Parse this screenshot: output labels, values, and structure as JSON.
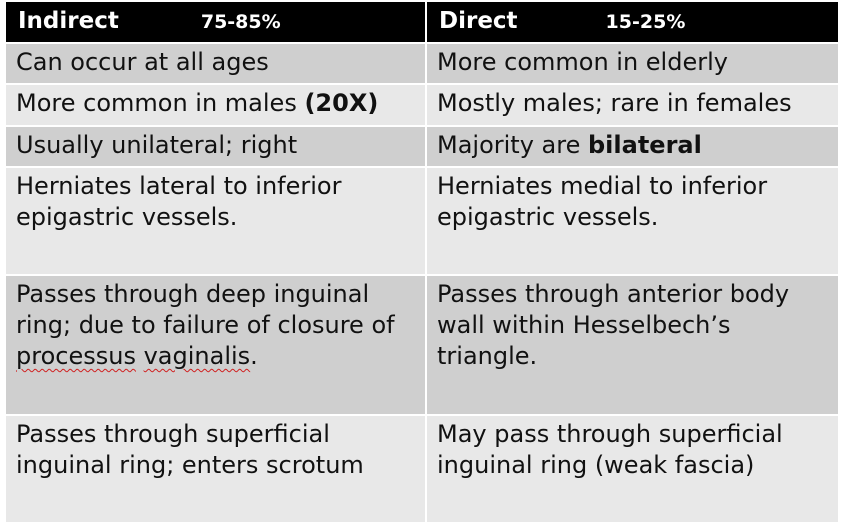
{
  "header": {
    "col1_title": "Indirect",
    "col1_pct": "75-85%",
    "col2_title": "Direct",
    "col2_pct": "15-25%"
  },
  "rows": [
    {
      "indirect": "Can occur at all ages",
      "direct": "More common in elderly"
    },
    {
      "indirect_pre": "More common in males ",
      "indirect_bold": "(20X)",
      "direct": "Mostly males; rare in females"
    },
    {
      "indirect": "Usually unilateral; right",
      "direct_pre": "Majority are ",
      "direct_bold": "bilateral"
    },
    {
      "indirect": "Herniates lateral to inferior epigastric vessels.",
      "direct": "Herniates medial to inferior epigastric vessels."
    },
    {
      "indirect_pre": "Passes through deep inguinal ring; due to failure of closure of ",
      "indirect_sq1": "processus",
      "indirect_mid": " ",
      "indirect_sq2": "vaginalis",
      "indirect_post": ".",
      "direct": "Passes through anterior body wall within Hesselbech’s triangle."
    },
    {
      "indirect": "Passes through superficial inguinal ring; enters scrotum",
      "direct": "May pass through superficial inguinal ring (weak fascia)"
    }
  ]
}
